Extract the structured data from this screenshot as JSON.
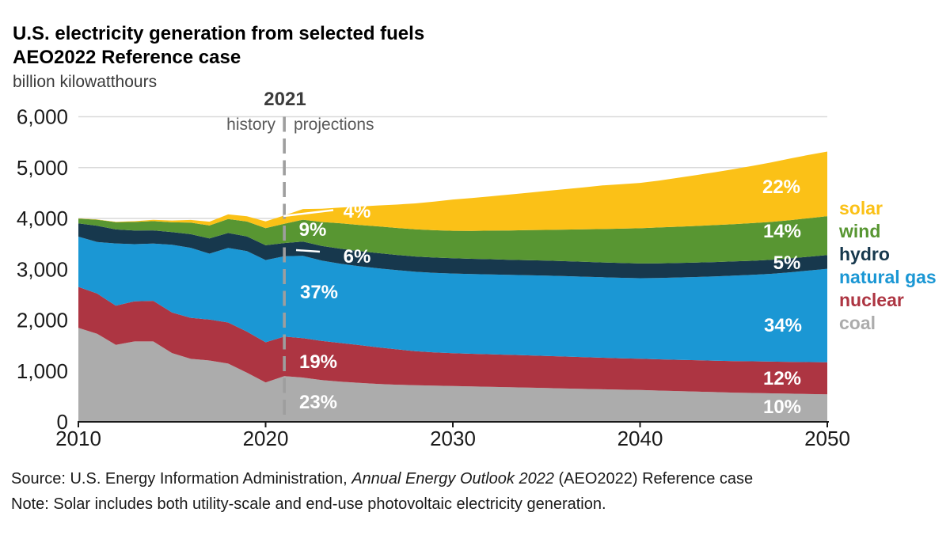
{
  "header": {
    "title_line1": "U.S. electricity generation from selected fuels",
    "title_line2": "AEO2022 Reference case",
    "unit_label": "billion kilowatthours"
  },
  "annotations": {
    "divider_year_label": "2021",
    "history_label": "history",
    "projections_label": "projections"
  },
  "legend": [
    {
      "id": "solar",
      "label": "solar",
      "color": "#FBC117"
    },
    {
      "id": "wind",
      "label": "wind",
      "color": "#589632"
    },
    {
      "id": "hydro",
      "label": "hydro",
      "color": "#17384D"
    },
    {
      "id": "gas",
      "label": "natural gas",
      "color": "#1B97D4"
    },
    {
      "id": "nuclear",
      "label": "nuclear",
      "color": "#AD3542"
    },
    {
      "id": "coal",
      "label": "coal",
      "color": "#ACACAC"
    }
  ],
  "footer": {
    "source_prefix": "Source: U.S. Energy Information Administration, ",
    "source_italic": "Annual Energy Outlook 2022",
    "source_suffix": " (AEO2022) Reference case",
    "note": "Note: Solar includes both utility-scale and end-use photovoltaic electricity generation."
  },
  "chart_data": {
    "type": "area",
    "stacked": true,
    "title": "U.S. electricity generation from selected fuels",
    "subtitle": "AEO2022 Reference case",
    "ylabel": "billion kilowatthours",
    "x_start": 2010,
    "x_end": 2050,
    "divider_year": 2021,
    "ylim": [
      0,
      6000
    ],
    "grid": "horizontal",
    "x_ticks": [
      "2010",
      "2020",
      "2030",
      "2040",
      "2050"
    ],
    "y_ticks": [
      {
        "v": 0,
        "label": "0"
      },
      {
        "v": 1000,
        "label": "1,000"
      },
      {
        "v": 2000,
        "label": "2,000"
      },
      {
        "v": 3000,
        "label": "3,000"
      },
      {
        "v": 4000,
        "label": "4,000"
      },
      {
        "v": 5000,
        "label": "5,000"
      },
      {
        "v": 6000,
        "label": "6,000"
      }
    ],
    "series": [
      {
        "id": "coal",
        "name": "coal",
        "color": "#ACACAC",
        "values": [
          1847,
          1733,
          1514,
          1581,
          1582,
          1352,
          1239,
          1206,
          1146,
          966,
          774,
          899,
          870,
          820,
          790,
          765,
          745,
          730,
          720,
          712,
          705,
          695,
          688,
          680,
          672,
          664,
          656,
          648,
          640,
          632,
          625,
          615,
          605,
          595,
          585,
          575,
          568,
          561,
          554,
          547,
          540
        ]
      },
      {
        "id": "nuclear",
        "name": "nuclear",
        "color": "#AD3542",
        "values": [
          807,
          790,
          769,
          789,
          797,
          797,
          806,
          805,
          807,
          809,
          790,
          778,
          775,
          770,
          760,
          745,
          720,
          695,
          670,
          655,
          645,
          643,
          641,
          638,
          635,
          632,
          628,
          624,
          620,
          617,
          615,
          615,
          616,
          617,
          618,
          620,
          622,
          624,
          626,
          628,
          630
        ]
      },
      {
        "id": "gas",
        "name": "natural gas",
        "color": "#1B97D4",
        "values": [
          988,
          1013,
          1225,
          1124,
          1127,
          1335,
          1378,
          1296,
          1468,
          1582,
          1617,
          1579,
          1620,
          1580,
          1560,
          1550,
          1555,
          1558,
          1561,
          1564,
          1567,
          1569,
          1571,
          1573,
          1576,
          1579,
          1581,
          1582,
          1583,
          1584,
          1585,
          1600,
          1618,
          1637,
          1658,
          1680,
          1700,
          1725,
          1760,
          1800,
          1840
        ]
      },
      {
        "id": "hydro",
        "name": "hydro",
        "color": "#17384D",
        "values": [
          260,
          319,
          276,
          269,
          259,
          249,
          268,
          300,
          292,
          288,
          291,
          260,
          280,
          290,
          295,
          298,
          300,
          300,
          300,
          300,
          300,
          299,
          298,
          297,
          296,
          295,
          294,
          293,
          292,
          291,
          290,
          288,
          286,
          284,
          282,
          280,
          278,
          276,
          274,
          272,
          270
        ]
      },
      {
        "id": "wind",
        "name": "wind",
        "color": "#589632",
        "values": [
          95,
          120,
          141,
          168,
          182,
          191,
          227,
          254,
          275,
          295,
          338,
          378,
          430,
          470,
          500,
          515,
          525,
          530,
          534,
          537,
          540,
          550,
          562,
          575,
          590,
          605,
          622,
          640,
          657,
          675,
          692,
          705,
          712,
          719,
          726,
          733,
          740,
          746,
          752,
          758,
          765
        ]
      },
      {
        "id": "solar",
        "name": "solar",
        "color": "#FBC117",
        "values": [
          3,
          5,
          9,
          15,
          25,
          36,
          52,
          75,
          92,
          104,
          131,
          164,
          210,
          260,
          310,
          360,
          410,
          460,
          510,
          562,
          615,
          645,
          675,
          705,
          735,
          765,
          795,
          825,
          857,
          875,
          892,
          920,
          960,
          1000,
          1040,
          1080,
          1125,
          1170,
          1210,
          1245,
          1270
        ]
      }
    ],
    "share_labels": {
      "2021": {
        "solar": "4%",
        "wind": "9%",
        "hydro": "6%",
        "gas": "37%",
        "nuclear": "19%",
        "coal": "23%"
      },
      "2050": {
        "solar": "22%",
        "wind": "14%",
        "hydro": "5%",
        "gas": "34%",
        "nuclear": "12%",
        "coal": "10%"
      }
    }
  }
}
